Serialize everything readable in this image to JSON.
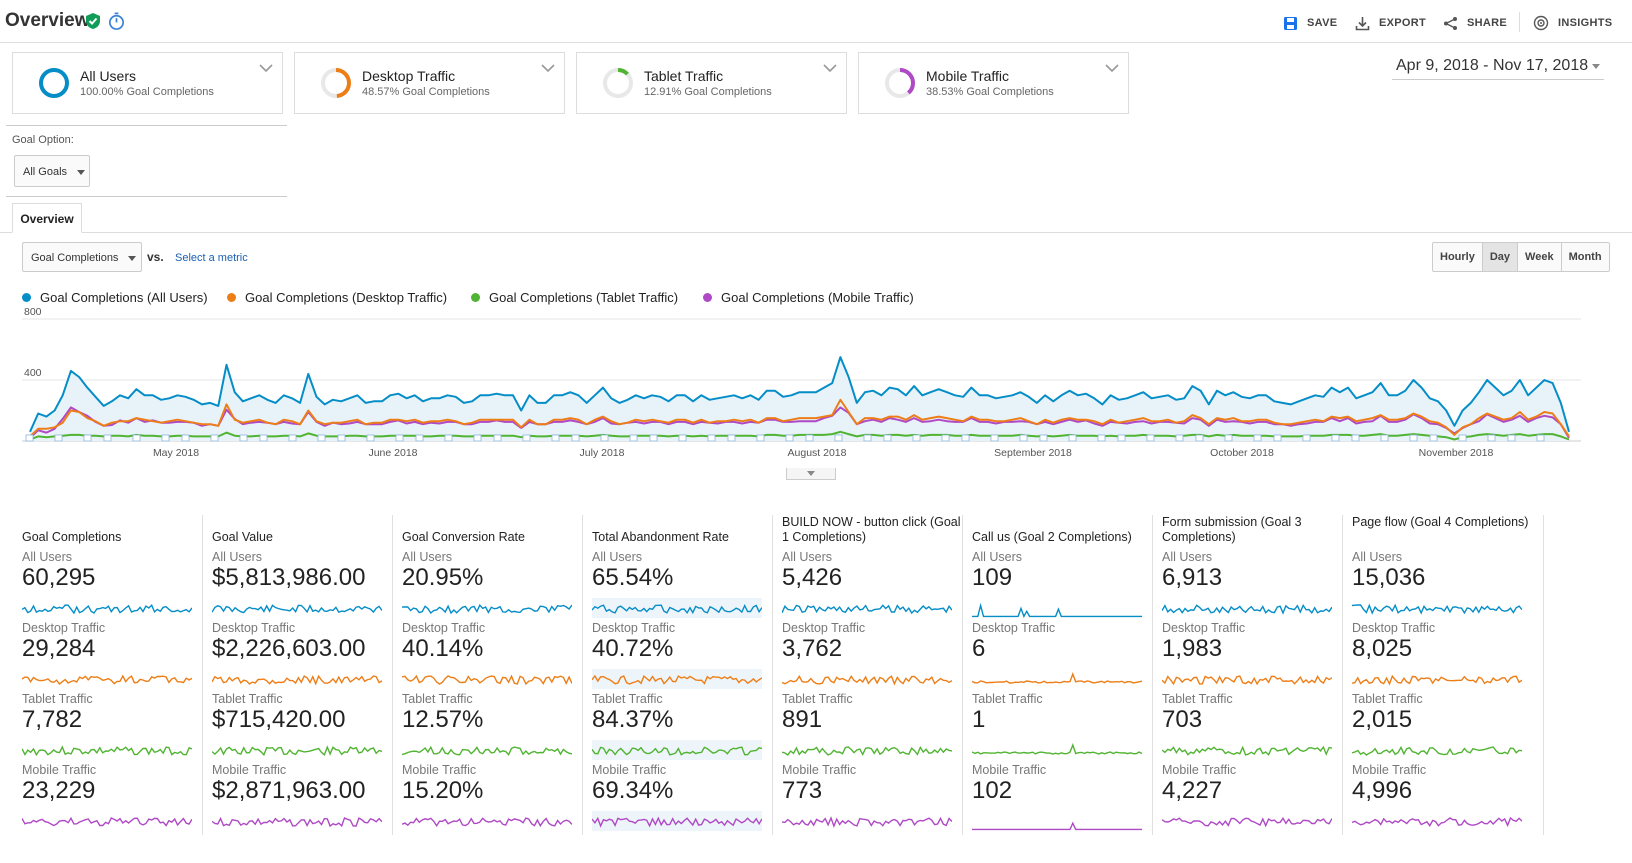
{
  "header": {
    "title": "Overview",
    "actions": [
      {
        "label": "SAVE",
        "icon": "save-icon"
      },
      {
        "label": "EXPORT",
        "icon": "export-icon"
      },
      {
        "label": "SHARE",
        "icon": "share-icon"
      },
      {
        "label": "INSIGHTS",
        "icon": "insights-icon"
      }
    ]
  },
  "segments": [
    {
      "name": "All Users",
      "sub": "100.00% Goal Completions",
      "color": "#058dc7",
      "fraction": 1.0
    },
    {
      "name": "Desktop Traffic",
      "sub": "48.57% Goal Completions",
      "color": "#ed7e17",
      "fraction": 0.4857
    },
    {
      "name": "Tablet Traffic",
      "sub": "12.91% Goal Completions",
      "color": "#50b432",
      "fraction": 0.1291
    },
    {
      "name": "Mobile Traffic",
      "sub": "38.53% Goal Completions",
      "color": "#af49c5",
      "fraction": 0.3853
    }
  ],
  "date_range": "Apr 9, 2018 - Nov 17, 2018",
  "goal_option": {
    "label": "Goal Option:",
    "value": "All Goals"
  },
  "tabs": [
    {
      "label": "Overview"
    }
  ],
  "metric_selector": {
    "value": "Goal Completions",
    "vs": "vs.",
    "select_link": "Select a metric"
  },
  "period_buttons": [
    {
      "label": "Hourly",
      "active": false
    },
    {
      "label": "Day",
      "active": true
    },
    {
      "label": "Week",
      "active": false
    },
    {
      "label": "Month",
      "active": false
    }
  ],
  "chart_data": {
    "type": "line",
    "ylim": [
      0,
      800
    ],
    "yticks": [
      "800",
      "400"
    ],
    "x_tick_labels": [
      "May 2018",
      "June 2018",
      "July 2018",
      "August 2018",
      "September 2018",
      "October 2018",
      "November 2018"
    ],
    "grid": true,
    "legend_position": "top-left",
    "series": [
      {
        "name": "Goal Completions (All Users)",
        "color": "#058dc7",
        "area": true,
        "values": [
          60,
          180,
          160,
          200,
          300,
          460,
          420,
          350,
          290,
          230,
          260,
          300,
          280,
          340,
          300,
          300,
          270,
          280,
          300,
          290,
          270,
          240,
          250,
          230,
          500,
          320,
          260,
          280,
          300,
          270,
          250,
          300,
          280,
          250,
          440,
          290,
          240,
          270,
          260,
          280,
          300,
          250,
          260,
          260,
          300,
          310,
          280,
          300,
          260,
          280,
          280,
          300,
          290,
          250,
          260,
          300,
          300,
          310,
          300,
          300,
          200,
          300,
          250,
          250,
          300,
          300,
          320,
          300,
          250,
          300,
          350,
          280,
          250,
          270,
          300,
          280,
          300,
          290,
          260,
          300,
          300,
          260,
          300,
          270,
          280,
          290,
          300,
          280,
          300,
          270,
          330,
          330,
          290,
          300,
          320,
          320,
          320,
          350,
          380,
          550,
          420,
          250,
          320,
          330,
          300,
          350,
          340,
          300,
          360,
          300,
          320,
          340,
          320,
          300,
          290,
          350,
          300,
          300,
          280,
          290,
          300,
          320,
          290,
          250,
          300,
          260,
          300,
          330,
          300,
          310,
          280,
          240,
          300,
          270,
          280,
          300,
          320,
          280,
          290,
          300,
          270,
          280,
          360,
          330,
          240,
          330,
          300,
          320,
          290,
          280,
          300,
          300,
          260,
          250,
          240,
          260,
          280,
          300,
          290,
          350,
          320,
          350,
          280,
          300,
          320,
          380,
          300,
          300,
          330,
          400,
          350,
          280,
          260,
          200,
          100,
          200,
          250,
          320,
          400,
          350,
          300,
          330,
          400,
          300,
          350,
          400,
          380,
          250,
          60
        ]
      },
      {
        "name": "Goal Completions (Desktop Traffic)",
        "color": "#ed7e17",
        "area": false,
        "values": [
          30,
          80,
          80,
          90,
          120,
          200,
          190,
          150,
          130,
          100,
          120,
          130,
          130,
          150,
          140,
          130,
          120,
          130,
          140,
          130,
          120,
          110,
          110,
          100,
          240,
          140,
          120,
          130,
          140,
          120,
          110,
          140,
          130,
          110,
          200,
          130,
          110,
          120,
          120,
          130,
          140,
          110,
          120,
          120,
          140,
          140,
          130,
          140,
          120,
          130,
          130,
          140,
          130,
          110,
          120,
          140,
          140,
          140,
          140,
          140,
          90,
          140,
          110,
          110,
          140,
          140,
          150,
          140,
          110,
          140,
          160,
          130,
          110,
          120,
          140,
          130,
          140,
          130,
          120,
          140,
          140,
          120,
          140,
          120,
          130,
          130,
          140,
          130,
          140,
          120,
          150,
          150,
          130,
          140,
          150,
          150,
          150,
          160,
          170,
          270,
          190,
          110,
          150,
          150,
          140,
          160,
          160,
          140,
          170,
          140,
          150,
          160,
          150,
          140,
          130,
          160,
          140,
          140,
          130,
          130,
          140,
          150,
          130,
          110,
          140,
          120,
          140,
          150,
          140,
          140,
          130,
          110,
          140,
          120,
          130,
          140,
          150,
          130,
          130,
          140,
          120,
          130,
          170,
          150,
          110,
          150,
          140,
          150,
          130,
          130,
          140,
          140,
          120,
          110,
          110,
          120,
          130,
          140,
          130,
          160,
          150,
          160,
          130,
          140,
          150,
          170,
          140,
          140,
          150,
          180,
          160,
          130,
          120,
          90,
          40,
          90,
          110,
          150,
          180,
          160,
          140,
          150,
          190,
          140,
          160,
          190,
          180,
          110,
          30
        ]
      },
      {
        "name": "Goal Completions (Tablet Traffic)",
        "color": "#50b432",
        "area": false,
        "values": [
          10,
          30,
          25,
          30,
          35,
          40,
          40,
          35,
          35,
          30,
          35,
          35,
          30,
          40,
          35,
          35,
          30,
          30,
          35,
          35,
          30,
          30,
          30,
          30,
          55,
          35,
          30,
          30,
          35,
          30,
          30,
          35,
          35,
          30,
          50,
          35,
          30,
          30,
          30,
          35,
          35,
          30,
          30,
          30,
          35,
          35,
          35,
          35,
          30,
          30,
          35,
          35,
          35,
          30,
          30,
          35,
          35,
          35,
          35,
          35,
          25,
          35,
          30,
          30,
          35,
          35,
          35,
          35,
          30,
          35,
          40,
          35,
          30,
          30,
          35,
          35,
          35,
          35,
          30,
          35,
          35,
          30,
          35,
          30,
          35,
          35,
          35,
          35,
          35,
          30,
          40,
          40,
          35,
          35,
          40,
          40,
          40,
          40,
          45,
          60,
          45,
          30,
          40,
          40,
          35,
          40,
          40,
          35,
          40,
          35,
          40,
          40,
          40,
          35,
          35,
          40,
          35,
          35,
          35,
          35,
          35,
          40,
          35,
          30,
          35,
          30,
          35,
          40,
          35,
          35,
          35,
          30,
          35,
          30,
          35,
          35,
          40,
          35,
          35,
          35,
          30,
          35,
          40,
          40,
          30,
          40,
          35,
          40,
          35,
          35,
          35,
          35,
          30,
          30,
          30,
          30,
          35,
          35,
          35,
          40,
          40,
          40,
          35,
          35,
          40,
          45,
          35,
          35,
          40,
          45,
          40,
          35,
          30,
          25,
          10,
          25,
          30,
          40,
          45,
          40,
          35,
          40,
          45,
          35,
          40,
          45,
          45,
          30,
          10
        ]
      },
      {
        "name": "Goal Completions (Mobile Traffic)",
        "color": "#af49c5",
        "area": false,
        "values": [
          20,
          70,
          55,
          80,
          145,
          220,
          190,
          165,
          125,
          100,
          105,
          135,
          120,
          150,
          125,
          135,
          120,
          120,
          125,
          125,
          120,
          100,
          110,
          100,
          205,
          145,
          110,
          120,
          125,
          120,
          110,
          125,
          115,
          110,
          190,
          125,
          100,
          120,
          110,
          115,
          125,
          110,
          110,
          110,
          125,
          135,
          115,
          125,
          110,
          120,
          115,
          125,
          125,
          110,
          110,
          125,
          125,
          135,
          125,
          125,
          85,
          125,
          110,
          110,
          125,
          125,
          135,
          125,
          110,
          125,
          150,
          115,
          110,
          120,
          125,
          115,
          125,
          125,
          110,
          125,
          125,
          110,
          125,
          120,
          115,
          125,
          125,
          115,
          125,
          120,
          140,
          140,
          125,
          125,
          130,
          130,
          130,
          150,
          165,
          220,
          185,
          110,
          130,
          140,
          125,
          150,
          140,
          125,
          150,
          125,
          130,
          140,
          130,
          125,
          125,
          150,
          125,
          125,
          115,
          125,
          125,
          130,
          125,
          110,
          125,
          110,
          125,
          140,
          125,
          135,
          115,
          100,
          125,
          120,
          115,
          125,
          130,
          115,
          125,
          125,
          120,
          115,
          150,
          140,
          100,
          140,
          125,
          130,
          125,
          115,
          125,
          125,
          110,
          110,
          100,
          110,
          115,
          125,
          125,
          150,
          130,
          150,
          115,
          125,
          130,
          165,
          125,
          125,
          140,
          175,
          150,
          115,
          110,
          85,
          50,
          85,
          110,
          130,
          175,
          150,
          125,
          140,
          165,
          125,
          150,
          165,
          155,
          110,
          20
        ]
      }
    ]
  },
  "scorecards": [
    {
      "title": "Goal Completions",
      "rows": [
        {
          "label": "All Users",
          "value": "60,295"
        },
        {
          "label": "Desktop Traffic",
          "value": "29,284"
        },
        {
          "label": "Tablet Traffic",
          "value": "7,782"
        },
        {
          "label": "Mobile Traffic",
          "value": "23,229"
        }
      ]
    },
    {
      "title": "Goal Value",
      "rows": [
        {
          "label": "All Users",
          "value": "$5,813,986.00"
        },
        {
          "label": "Desktop Traffic",
          "value": "$2,226,603.00"
        },
        {
          "label": "Tablet Traffic",
          "value": "$715,420.00"
        },
        {
          "label": "Mobile Traffic",
          "value": "$2,871,963.00"
        }
      ]
    },
    {
      "title": "Goal Conversion Rate",
      "rows": [
        {
          "label": "All Users",
          "value": "20.95%"
        },
        {
          "label": "Desktop Traffic",
          "value": "40.14%"
        },
        {
          "label": "Tablet Traffic",
          "value": "12.57%"
        },
        {
          "label": "Mobile Traffic",
          "value": "15.20%"
        }
      ]
    },
    {
      "title": "Total Abandonment Rate",
      "rows": [
        {
          "label": "All Users",
          "value": "65.54%"
        },
        {
          "label": "Desktop Traffic",
          "value": "40.72%"
        },
        {
          "label": "Tablet Traffic",
          "value": "84.37%"
        },
        {
          "label": "Mobile Traffic",
          "value": "69.34%"
        }
      ]
    },
    {
      "title": "BUILD NOW - button click (Goal 1 Completions)",
      "rows": [
        {
          "label": "All Users",
          "value": "5,426"
        },
        {
          "label": "Desktop Traffic",
          "value": "3,762"
        },
        {
          "label": "Tablet Traffic",
          "value": "891"
        },
        {
          "label": "Mobile Traffic",
          "value": "773"
        }
      ]
    },
    {
      "title": "Call us (Goal 2 Completions)",
      "rows": [
        {
          "label": "All Users",
          "value": "109"
        },
        {
          "label": "Desktop Traffic",
          "value": "6"
        },
        {
          "label": "Tablet Traffic",
          "value": "1"
        },
        {
          "label": "Mobile Traffic",
          "value": "102"
        }
      ]
    },
    {
      "title": "Form submission (Goal 3 Completions)",
      "rows": [
        {
          "label": "All Users",
          "value": "6,913"
        },
        {
          "label": "Desktop Traffic",
          "value": "1,983"
        },
        {
          "label": "Tablet Traffic",
          "value": "703"
        },
        {
          "label": "Mobile Traffic",
          "value": "4,227"
        }
      ]
    },
    {
      "title": "Page flow (Goal 4 Completions)",
      "rows": [
        {
          "label": "All Users",
          "value": "15,036"
        },
        {
          "label": "Desktop Traffic",
          "value": "8,025"
        },
        {
          "label": "Tablet Traffic",
          "value": "2,015"
        },
        {
          "label": "Mobile Traffic",
          "value": "4,996"
        }
      ]
    }
  ]
}
